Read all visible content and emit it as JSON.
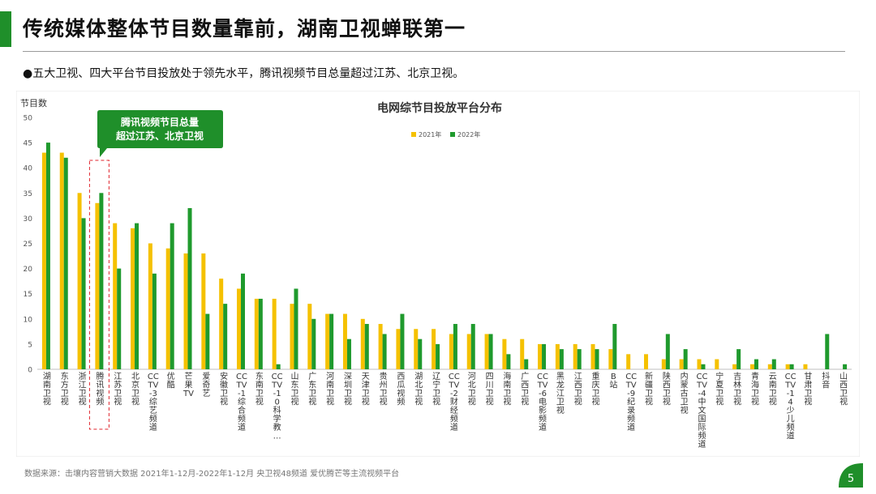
{
  "header": {
    "title": "传统媒体整体节目数量靠前，湖南卫视蝉联第一",
    "bullet": "●五大卫视、四大平台节目投放处于领先水平，腾讯视频节目总量超过江苏、北京卫视。"
  },
  "footer": {
    "source": "数据来源：击壤内容营销大数据 2021年1-12月-2022年1-12月 央卫视48频道 爱优腾芒等主流视频平台",
    "page_number": "5"
  },
  "colors": {
    "series_2021": "#f5c100",
    "series_2022": "#1f9a2d",
    "accent": "#1f8f2a"
  },
  "chart_data": {
    "type": "bar",
    "title": "电网综节目投放平台分布",
    "ylabel": "节目数",
    "ylim": [
      0,
      50
    ],
    "yticks": [
      0,
      5,
      10,
      15,
      20,
      25,
      30,
      35,
      40,
      45,
      50
    ],
    "grid": false,
    "legend_position": "top",
    "annotation": {
      "lines": [
        "腾讯视频节目总量",
        "超过江苏、北京卫视"
      ],
      "target_category": "腾讯视频"
    },
    "categories": [
      "湖南卫视",
      "东方卫视",
      "浙江卫视",
      "腾讯视频",
      "江苏卫视",
      "北京卫视",
      "CCTV-3综艺频道",
      "优酷",
      "芒果TV",
      "爱奇艺",
      "安徽卫视",
      "CCTV-1综合频道",
      "东南卫视",
      "CCTV-10科学教…",
      "山东卫视",
      "广东卫视",
      "河南卫视",
      "深圳卫视",
      "天津卫视",
      "贵州卫视",
      "西瓜视频",
      "湖北卫视",
      "辽宁卫视",
      "CCTV-2财经频道",
      "河北卫视",
      "四川卫视",
      "海南卫视",
      "广西卫视",
      "CCTV-6电影频道",
      "黑龙江卫视",
      "江西卫视",
      "重庆卫视",
      "B站",
      "CCTV-9纪录频道",
      "新疆卫视",
      "陕西卫视",
      "内蒙古卫视",
      "CCTV-4中文国际频道",
      "宁夏卫视",
      "吉林卫视",
      "青海卫视",
      "云南卫视",
      "CCTV-14少儿频道",
      "甘肃卫视",
      "抖音",
      "山西卫视"
    ],
    "series": [
      {
        "name": "2021年",
        "values": [
          43,
          43,
          35,
          33,
          29,
          28,
          25,
          24,
          23,
          23,
          18,
          16,
          14,
          14,
          13,
          13,
          11,
          11,
          10,
          9,
          8,
          8,
          8,
          7,
          7,
          7,
          6,
          6,
          5,
          5,
          5,
          5,
          4,
          3,
          3,
          2,
          2,
          2,
          2,
          1,
          1,
          1,
          1,
          1,
          0,
          0
        ]
      },
      {
        "name": "2022年",
        "values": [
          45,
          42,
          30,
          35,
          20,
          29,
          19,
          29,
          32,
          11,
          13,
          19,
          14,
          1,
          16,
          10,
          11,
          6,
          9,
          7,
          11,
          6,
          5,
          9,
          9,
          7,
          3,
          2,
          5,
          4,
          4,
          4,
          9,
          0,
          0,
          7,
          4,
          1,
          0,
          4,
          2,
          2,
          1,
          0,
          7,
          1
        ]
      }
    ]
  }
}
